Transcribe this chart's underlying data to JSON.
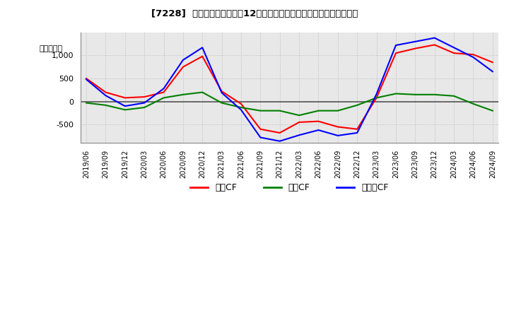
{
  "title": "[7228]  キャッシュフローの12か月移動合計の対前年同期増減額の推移",
  "ylabel": "（百万円）",
  "legend_labels": [
    "営業CF",
    "投資CF",
    "フリーCF"
  ],
  "colors": {
    "営業CF": "#ff0000",
    "投資CF": "#008000",
    "フリーCF": "#0000ff"
  },
  "x_labels": [
    "2019/06",
    "2019/09",
    "2019/12",
    "2020/03",
    "2020/06",
    "2020/09",
    "2020/12",
    "2021/03",
    "2021/06",
    "2021/09",
    "2021/12",
    "2022/03",
    "2022/06",
    "2022/09",
    "2022/12",
    "2023/03",
    "2023/06",
    "2023/09",
    "2023/12",
    "2024/03",
    "2024/06",
    "2024/09"
  ],
  "営業CF": [
    500,
    200,
    80,
    100,
    200,
    750,
    980,
    220,
    -50,
    -600,
    -680,
    -450,
    -430,
    -550,
    -600,
    80,
    1050,
    1150,
    1230,
    1050,
    1020,
    850
  ],
  "投資CF": [
    -30,
    -80,
    -180,
    -130,
    80,
    150,
    200,
    -30,
    -130,
    -200,
    -200,
    -300,
    -200,
    -200,
    -80,
    80,
    170,
    150,
    150,
    120,
    -50,
    -200
  ],
  "フリーCF": [
    480,
    130,
    -100,
    -30,
    280,
    900,
    1170,
    190,
    -180,
    -780,
    -860,
    -730,
    -620,
    -740,
    -680,
    160,
    1220,
    1300,
    1380,
    1170,
    960,
    650
  ],
  "ylim": [
    -900,
    1500
  ],
  "yticks": [
    -500,
    0,
    500,
    1000
  ],
  "background_color": "#ffffff",
  "grid_color": "#bbbbbb"
}
